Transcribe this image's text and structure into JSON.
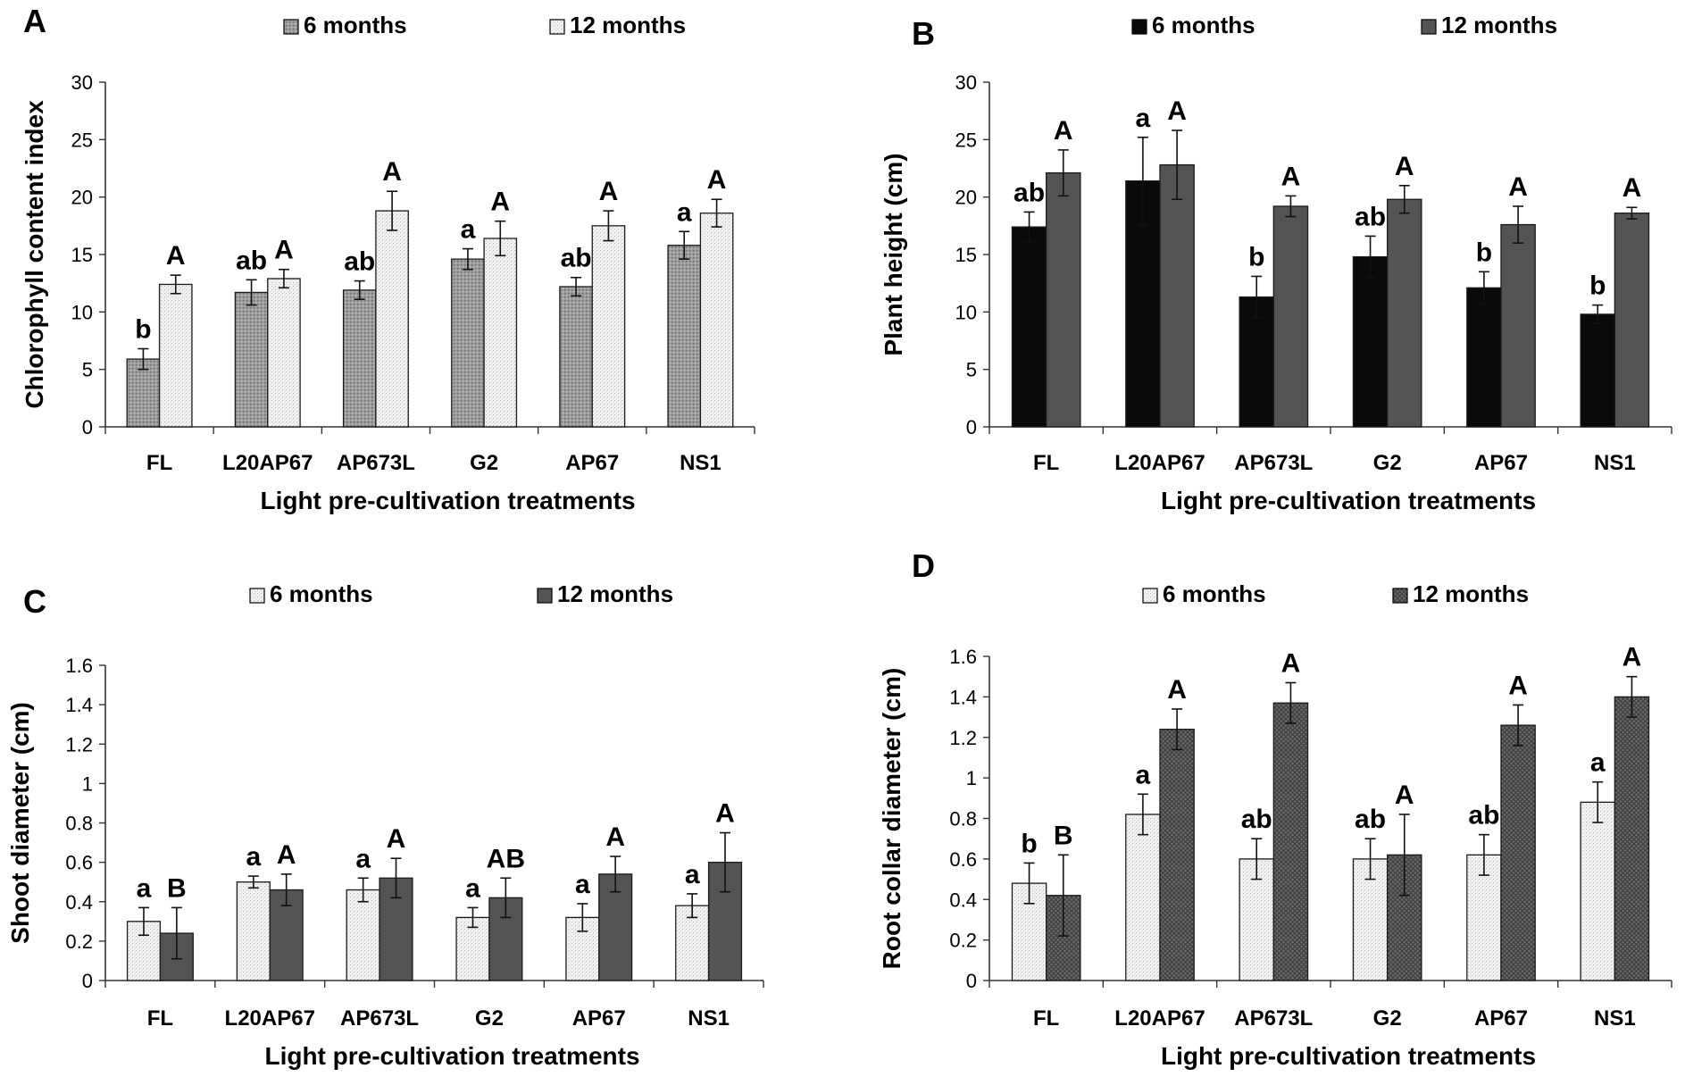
{
  "colors": {
    "axis": "#333333",
    "black": "#0a0a0a",
    "gray": "#545454",
    "dotted_gray_bg": "#9a9a9a",
    "dotted_light_bg": "#f4f4f4",
    "crosshatch_bg": "#6a6a6a",
    "white": "#ffffff"
  },
  "chart_data": [
    {
      "panel": "A",
      "type": "bar",
      "categories": [
        "FL",
        "L20AP67",
        "AP673L",
        "G2",
        "AP67",
        "NS1"
      ],
      "ylabel": "Chlorophyll content index",
      "xlabel": "Light pre-cultivation treatments",
      "ylim": [
        0,
        30
      ],
      "yticks": [
        0,
        5,
        10,
        15,
        20,
        25,
        30
      ],
      "legend_position": "top",
      "series": [
        {
          "name": "6 months",
          "style": "dotted-gray",
          "values": [
            5.9,
            11.7,
            11.9,
            14.6,
            12.2,
            15.8
          ],
          "errors": [
            0.9,
            1.1,
            0.8,
            0.9,
            0.8,
            1.2
          ],
          "letters": [
            "b",
            "ab",
            "ab",
            "a",
            "ab",
            "a"
          ]
        },
        {
          "name": "12 months",
          "style": "dotted-light",
          "values": [
            12.4,
            12.9,
            18.8,
            16.4,
            17.5,
            18.6
          ],
          "errors": [
            0.8,
            0.8,
            1.7,
            1.5,
            1.3,
            1.2
          ],
          "letters": [
            "A",
            "A",
            "A",
            "A",
            "A",
            "A"
          ]
        }
      ]
    },
    {
      "panel": "B",
      "type": "bar",
      "categories": [
        "FL",
        "L20AP67",
        "AP673L",
        "G2",
        "AP67",
        "NS1"
      ],
      "ylabel": "Plant height (cm)",
      "xlabel": "Light pre-cultivation treatments",
      "ylim": [
        0,
        30
      ],
      "yticks": [
        0,
        5,
        10,
        15,
        20,
        25,
        30
      ],
      "legend_position": "top",
      "series": [
        {
          "name": "6 months",
          "style": "black",
          "values": [
            17.4,
            21.4,
            11.3,
            14.8,
            12.1,
            9.8
          ],
          "errors": [
            1.3,
            3.8,
            1.8,
            1.8,
            1.4,
            0.8
          ],
          "letters": [
            "ab",
            "a",
            "b",
            "ab",
            "b",
            "b"
          ]
        },
        {
          "name": "12 months",
          "style": "gray",
          "values": [
            22.1,
            22.8,
            19.2,
            19.8,
            17.6,
            18.6
          ],
          "errors": [
            2.0,
            3.0,
            0.9,
            1.2,
            1.6,
            0.5
          ],
          "letters": [
            "A",
            "A",
            "A",
            "A",
            "A",
            "A"
          ]
        }
      ]
    },
    {
      "panel": "C",
      "type": "bar",
      "categories": [
        "FL",
        "L20AP67",
        "AP673L",
        "G2",
        "AP67",
        "NS1"
      ],
      "ylabel": "Shoot diameter (cm)",
      "xlabel": "Light pre-cultivation treatments",
      "ylim": [
        0,
        1.6
      ],
      "yticks": [
        "0",
        "0.2",
        "0.4",
        "0.6",
        "0.8",
        "1",
        "1.2",
        "1.4",
        "1.6"
      ],
      "legend_position": "top",
      "series": [
        {
          "name": "6 months",
          "style": "dotted-light",
          "values": [
            0.3,
            0.5,
            0.46,
            0.32,
            0.32,
            0.38
          ],
          "errors": [
            0.07,
            0.03,
            0.06,
            0.05,
            0.07,
            0.06
          ],
          "letters": [
            "a",
            "a",
            "a",
            "a",
            "a",
            "a"
          ]
        },
        {
          "name": "12 months",
          "style": "gray",
          "values": [
            0.24,
            0.46,
            0.52,
            0.42,
            0.54,
            0.6
          ],
          "errors": [
            0.13,
            0.08,
            0.1,
            0.1,
            0.09,
            0.15
          ],
          "letters": [
            "B",
            "A",
            "A",
            "AB",
            "A",
            "A"
          ]
        }
      ]
    },
    {
      "panel": "D",
      "type": "bar",
      "categories": [
        "FL",
        "L20AP67",
        "AP673L",
        "G2",
        "AP67",
        "NS1"
      ],
      "ylabel": "Root collar diameter (cm)",
      "xlabel": "Light pre-cultivation treatments",
      "ylim": [
        0,
        1.6
      ],
      "yticks": [
        "0",
        "0.2",
        "0.4",
        "0.6",
        "0.8",
        "1",
        "1.2",
        "1.4",
        "1.6"
      ],
      "legend_position": "top",
      "series": [
        {
          "name": "6 months",
          "style": "dotted-light",
          "values": [
            0.48,
            0.82,
            0.6,
            0.6,
            0.62,
            0.88
          ],
          "errors": [
            0.1,
            0.1,
            0.1,
            0.1,
            0.1,
            0.1
          ],
          "letters": [
            "b",
            "a",
            "ab",
            "ab",
            "ab",
            "a"
          ]
        },
        {
          "name": "12 months",
          "style": "crosshatch",
          "values": [
            0.42,
            1.24,
            1.37,
            0.62,
            1.26,
            1.4
          ],
          "errors": [
            0.2,
            0.1,
            0.1,
            0.2,
            0.1,
            0.1
          ],
          "letters": [
            "B",
            "A",
            "A",
            "A",
            "A",
            "A"
          ]
        }
      ]
    }
  ]
}
